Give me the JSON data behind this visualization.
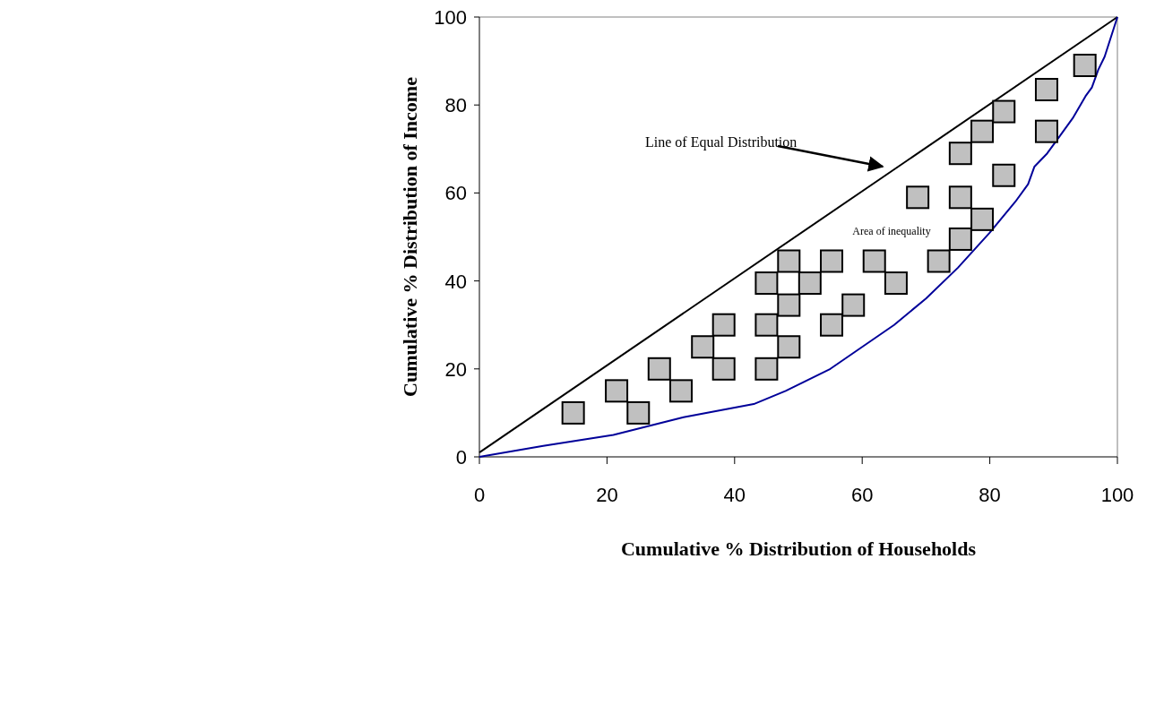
{
  "chart_data": {
    "type": "line",
    "xlabel": "Cumulative % Distribution of Households",
    "ylabel": "Cumulative % Distribution of Income",
    "xlim": [
      0,
      100
    ],
    "ylim": [
      0,
      100
    ],
    "xticks": [
      0,
      20,
      40,
      60,
      80,
      100
    ],
    "yticks": [
      0,
      20,
      40,
      60,
      80,
      100
    ],
    "grid": false,
    "annotations": [
      "Line of Equal Distribution",
      "Area of inequality"
    ],
    "series": [
      {
        "color": "#000000",
        "marker": "none",
        "x": [
          0,
          100
        ],
        "values": [
          1,
          100
        ]
      },
      {
        "color": "#000099",
        "marker": "none",
        "x": [
          0,
          10,
          21,
          32,
          43,
          48,
          55,
          60,
          65,
          70,
          75,
          80,
          84,
          86,
          87,
          89,
          91,
          93,
          95,
          96,
          97,
          98,
          100
        ],
        "values": [
          0,
          2.5,
          5,
          9,
          12,
          15,
          20,
          25,
          30,
          36,
          43,
          51,
          58,
          62,
          66,
          69,
          73,
          77,
          82,
          84,
          88,
          91,
          100
        ]
      },
      {
        "type": "scatter",
        "color": "#c0c0c0",
        "marker": "square",
        "x": [
          14.7,
          21.5,
          24.9,
          28.2,
          31.6,
          35,
          38.3,
          38.3,
          45,
          45,
          45,
          48.5,
          48.5,
          48.5,
          51.8,
          55.2,
          55.2,
          58.6,
          61.9,
          65.3,
          68.7,
          72,
          75.4,
          75.4,
          75.4,
          78.8,
          78.8,
          82.2,
          82.2,
          88.9,
          88.9,
          94.9
        ],
        "values": [
          10,
          15,
          10,
          20,
          15,
          25,
          30,
          20,
          39.5,
          30,
          20,
          44.5,
          34.5,
          25,
          39.5,
          44.5,
          30,
          34.5,
          44.5,
          39.5,
          59,
          44.5,
          49.5,
          59,
          69,
          54,
          74,
          64,
          78.5,
          74,
          83.5,
          89
        ]
      }
    ]
  }
}
